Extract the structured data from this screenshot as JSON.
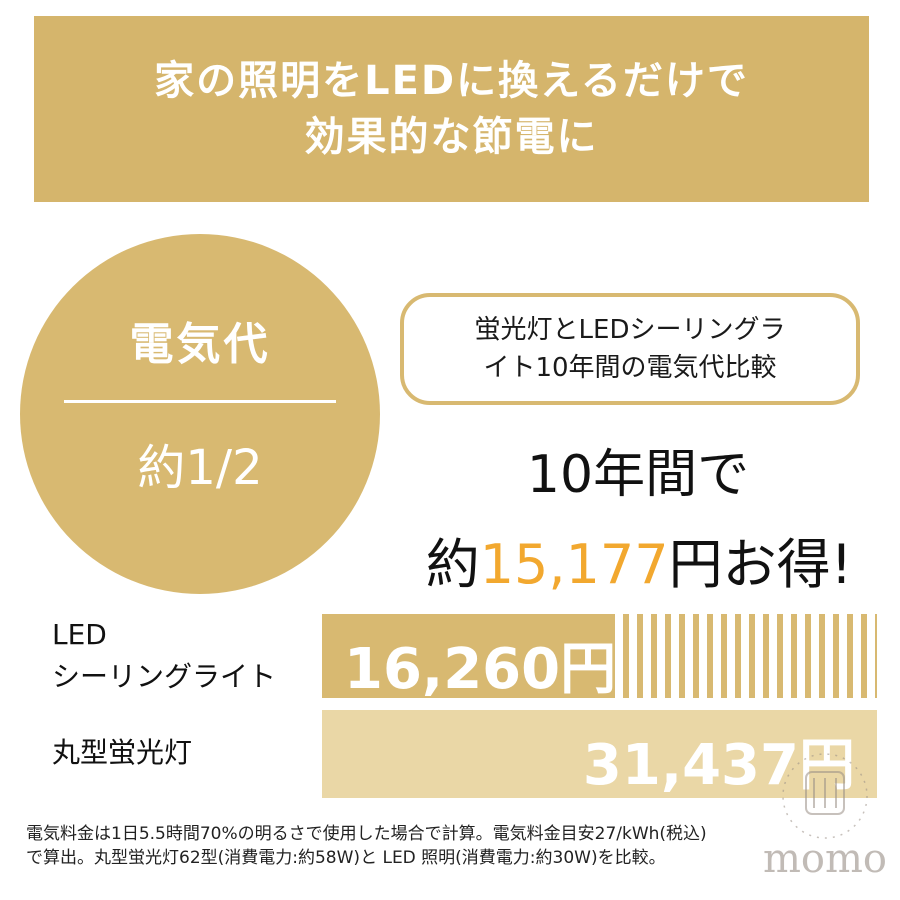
{
  "banner": {
    "line1": "家の照明をLEDに換えるだけで",
    "line2": "効果的な節電に"
  },
  "circle": {
    "top": "電気代",
    "bottom": "約1/2"
  },
  "note": {
    "line1": "蛍光灯とLEDシーリングラ",
    "line2": "イト10年間の電気代比較"
  },
  "headline": {
    "line1": "10年間で",
    "prefix": "約",
    "amount": "15,177",
    "suffix": "円お得!"
  },
  "chart_data": {
    "type": "bar",
    "categories": [
      "LED シーリングライト",
      "丸型蛍光灯"
    ],
    "values": [
      16260,
      31437
    ],
    "value_labels": [
      "16,260円",
      "31,437円"
    ],
    "labels": {
      "led_line1": "LED",
      "led_line2": "シーリングライト",
      "fluorescent": "丸型蛍光灯"
    },
    "unit": "円",
    "colors": {
      "led": "#d8b971",
      "fluorescent": "#ead7a6",
      "savings_highlight": "#f2a82f"
    }
  },
  "footnote": {
    "line1": "電気料金は1日5.5時間70%の明るさで使用した場合で計算。電気料金目安27/kWh(税込)",
    "line2": "で算出。丸型蛍光灯62型(消費電力:約58W)と LED 照明(消費電力:約30W)を比較。"
  },
  "watermark": {
    "text": "momo"
  }
}
